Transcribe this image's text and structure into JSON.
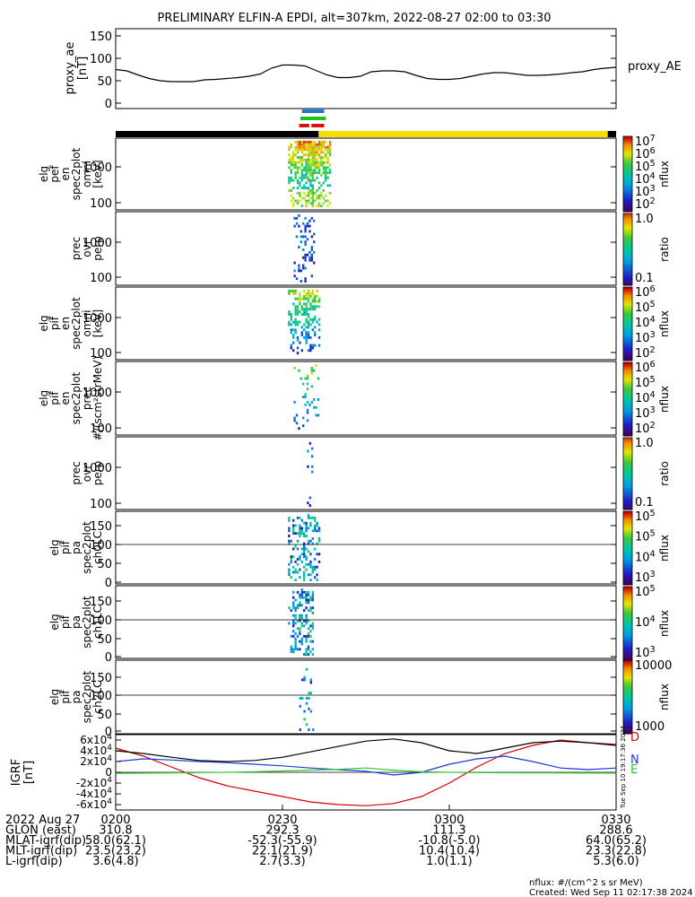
{
  "title": "PRELIMINARY ELFIN-A EPDI, alt=307km, 2022-08-27 02:00 to 03:30",
  "chart_data": [
    {
      "type": "line",
      "id": "proxy_ae",
      "ylabel_lines": [
        "proxy_ae",
        "[nT]"
      ],
      "legend": "proxy_AE",
      "ylim": [
        0,
        150
      ],
      "yticks": [
        "0",
        "50",
        "100",
        "150"
      ],
      "x": [
        0,
        2,
        4,
        6,
        8,
        10,
        12,
        14,
        16,
        18,
        20,
        22,
        24,
        26,
        28,
        30,
        32,
        34,
        36,
        38,
        40,
        42,
        44,
        46,
        48,
        50,
        52,
        54,
        56,
        58,
        60,
        62,
        64,
        66,
        68,
        70,
        72,
        74,
        76,
        78,
        80,
        82,
        84,
        86,
        88,
        90
      ],
      "values": [
        75,
        72,
        63,
        55,
        50,
        48,
        48,
        48,
        52,
        53,
        55,
        57,
        60,
        65,
        78,
        85,
        85,
        83,
        73,
        63,
        57,
        57,
        60,
        70,
        72,
        72,
        70,
        62,
        55,
        53,
        53,
        55,
        60,
        65,
        68,
        68,
        65,
        62,
        62,
        63,
        65,
        68,
        70,
        75,
        78,
        80
      ]
    },
    {
      "type": "heatmap",
      "id": "pef_en_omni",
      "ylabel_lines": [
        "elg",
        "pef",
        "en",
        "spec2plot",
        "omni",
        "[keV]"
      ],
      "yticks": [
        "100",
        "1000"
      ],
      "colorbar_ticks": [
        "10^2",
        "10^3",
        "10^4",
        "10^5",
        "10^6",
        "10^7"
      ],
      "colorbar_label": "nflux",
      "x_range_minutes": [
        31,
        39
      ]
    },
    {
      "type": "heatmap",
      "id": "pef_prec_ovr_perp",
      "ylabel_lines": [
        "prec",
        "ovr",
        "perp"
      ],
      "yticks": [
        "100",
        "1000"
      ],
      "colorbar_ticks": [
        "0.1",
        "1.0"
      ],
      "colorbar_label": "ratio",
      "x_range_minutes": [
        31.5,
        36.5
      ]
    },
    {
      "type": "heatmap",
      "id": "pif_en_omni",
      "ylabel_lines": [
        "elg",
        "pif",
        "en",
        "spec2plot",
        "omni",
        "[keV]"
      ],
      "yticks": [
        "100",
        "1000"
      ],
      "colorbar_ticks": [
        "10^2",
        "10^3",
        "10^4",
        "10^5",
        "10^6"
      ],
      "colorbar_label": "nflux",
      "x_range_minutes": [
        31,
        37
      ]
    },
    {
      "type": "heatmap",
      "id": "pif_en_prec",
      "ylabel_lines": [
        "elg",
        "pif",
        "en",
        "spec2plot",
        "prec",
        "#/(scm²strMeV)"
      ],
      "yticks": [
        "100",
        "1000"
      ],
      "colorbar_ticks": [
        "10^2",
        "10^3",
        "10^4",
        "10^5",
        "10^6"
      ],
      "colorbar_label": "nflux",
      "x_range_minutes": [
        32,
        37
      ]
    },
    {
      "type": "heatmap",
      "id": "pif_prec_ovr_perp",
      "ylabel_lines": [
        "prec",
        "ovr",
        "perp"
      ],
      "yticks": [
        "100",
        "1000"
      ],
      "colorbar_ticks": [
        "0.1",
        "1.0"
      ],
      "colorbar_label": "ratio",
      "x_range_minutes": [
        34,
        36
      ]
    },
    {
      "type": "heatmap",
      "id": "pif_pa_ch0",
      "ylabel_lines": [
        "elg",
        "pif",
        "pa",
        "spec2plot",
        "ch0LC"
      ],
      "yticks": [
        "0",
        "50",
        "100",
        "150"
      ],
      "colorbar_ticks": [
        "10^3",
        "10^4",
        "10^5",
        "10^5"
      ],
      "colorbar_label": "nflux",
      "x_range_minutes": [
        31,
        37
      ]
    },
    {
      "type": "heatmap",
      "id": "pif_pa_ch1",
      "ylabel_lines": [
        "elg",
        "pif",
        "pa",
        "spec2plot",
        "ch1LC"
      ],
      "yticks": [
        "0",
        "50",
        "100",
        "150"
      ],
      "colorbar_ticks": [
        "10^3",
        "10^4",
        "10^5"
      ],
      "colorbar_label": "nflux",
      "x_range_minutes": [
        31,
        36
      ]
    },
    {
      "type": "heatmap",
      "id": "pif_pa_ch2",
      "ylabel_lines": [
        "elg",
        "pif",
        "pa",
        "spec2plot",
        "ch2LC"
      ],
      "yticks": [
        "0",
        "50",
        "100",
        "150"
      ],
      "colorbar_ticks": [
        "1000",
        "10000"
      ],
      "colorbar_label": "nflux",
      "x_range_minutes": [
        33,
        36
      ]
    },
    {
      "type": "line",
      "id": "igrf",
      "ylabel_lines": [
        "IGRF",
        "[nT]"
      ],
      "ylim": [
        -65000,
        65000
      ],
      "yticks": [
        "-6×10^4",
        "-4×10^4",
        "-2×10^4",
        "0",
        "2×10^4",
        "4×10^4",
        "6×10^4"
      ],
      "x": [
        0,
        5,
        10,
        15,
        20,
        25,
        30,
        35,
        40,
        45,
        50,
        55,
        60,
        65,
        70,
        75,
        80,
        85,
        90
      ],
      "series": [
        {
          "name": "D",
          "color": "#d40000",
          "values": [
            45000,
            30000,
            10000,
            -10000,
            -25000,
            -35000,
            -45000,
            -55000,
            -60000,
            -62000,
            -58000,
            -45000,
            -20000,
            10000,
            35000,
            50000,
            60000,
            55000,
            52000
          ]
        },
        {
          "name": "N",
          "color": "#1a3ad8",
          "values": [
            20000,
            25000,
            23000,
            20000,
            18000,
            15000,
            12000,
            8000,
            5000,
            2000,
            -5000,
            0,
            15000,
            25000,
            30000,
            20000,
            8000,
            5000,
            8000
          ]
        },
        {
          "name": "E",
          "color": "#2ec82e",
          "values": [
            -2000,
            -1500,
            -1000,
            -500,
            0,
            1000,
            2500,
            4000,
            5500,
            8000,
            4000,
            1000,
            0,
            -500,
            -800,
            -1000,
            -1200,
            -1300,
            -1500
          ]
        },
        {
          "name": "",
          "color": "#000000",
          "values": [
            40000,
            35000,
            28000,
            22000,
            20000,
            22000,
            28000,
            38000,
            48000,
            58000,
            62000,
            55000,
            40000,
            35000,
            45000,
            55000,
            58000,
            55000,
            50000
          ]
        }
      ],
      "side_text": "Tue Sep 10 19:17:36 2024"
    }
  ],
  "coverage_bars": [
    {
      "color": "#1a7ad8",
      "start": 33.5,
      "end": 37.5
    },
    {
      "color": "#20c020",
      "start": 33.2,
      "end": 37.8
    },
    {
      "color": "#e01010",
      "start": 33.0,
      "end": 34.8
    },
    {
      "color": "#e01010",
      "start": 35.2,
      "end": 37.5
    }
  ],
  "status_bar": [
    {
      "color": "#000000",
      "start": 0,
      "end": 36.5
    },
    {
      "color": "#f5dc00",
      "start": 36.5,
      "end": 88.5
    },
    {
      "color": "#000000",
      "start": 88.5,
      "end": 90
    }
  ],
  "orbit_table": {
    "rows": [
      [
        "2022 Aug 27",
        "0200",
        "0230",
        "0300",
        "0330"
      ],
      [
        "GLON (east)",
        "310.8",
        "292.3",
        "111.3",
        "288.6"
      ],
      [
        "MLAT-igrf(dip)",
        "58.0(62.1)",
        "-52.3(-55.9)",
        "-10.8(-5.0)",
        "64.0(65.2)"
      ],
      [
        "MLT-igrf(dip)",
        "23.5(23.2)",
        "22.1(21.9)",
        "10.4(10.4)",
        "23.3(22.8)"
      ],
      [
        "L-igrf(dip)",
        "3.6(4.8)",
        "2.7(3.3)",
        "1.0(1.1)",
        "5.3(6.0)"
      ]
    ]
  },
  "footer": {
    "line1": "nflux: #/(cm^2 s sr MeV)",
    "line2": "Created: Wed Sep 11 02:17:38 2024"
  }
}
